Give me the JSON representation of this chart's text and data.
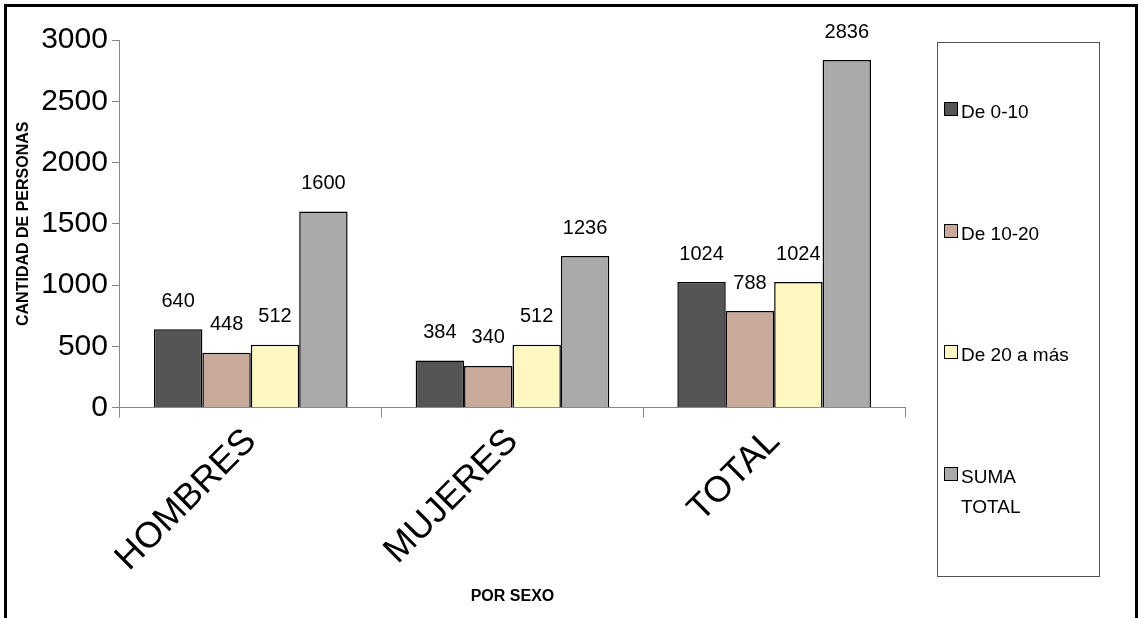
{
  "chart_data": {
    "type": "bar",
    "xlabel": "POR SEXO",
    "ylabel": "CANTIDAD DE PERSONAS",
    "categories": [
      "HOMBRES",
      "MUJERES",
      "TOTAL"
    ],
    "series": [
      {
        "name": "De 0-10",
        "color": "#555555",
        "values": [
          640,
          384,
          1024
        ]
      },
      {
        "name": "De 10-20",
        "color": "#c9a99a",
        "values": [
          448,
          340,
          788
        ]
      },
      {
        "name": "De 20 a más",
        "color": "#fff7c2",
        "values": [
          512,
          512,
          1024
        ]
      },
      {
        "name": "SUMA TOTAL",
        "color": "#aaaaaa",
        "values": [
          1600,
          1236,
          2836
        ]
      }
    ],
    "ylim": [
      0,
      3000
    ],
    "yticks": [
      0,
      500,
      1000,
      1500,
      2000,
      2500,
      3000
    ],
    "grid": false,
    "legend": "right",
    "data_labels": true
  }
}
